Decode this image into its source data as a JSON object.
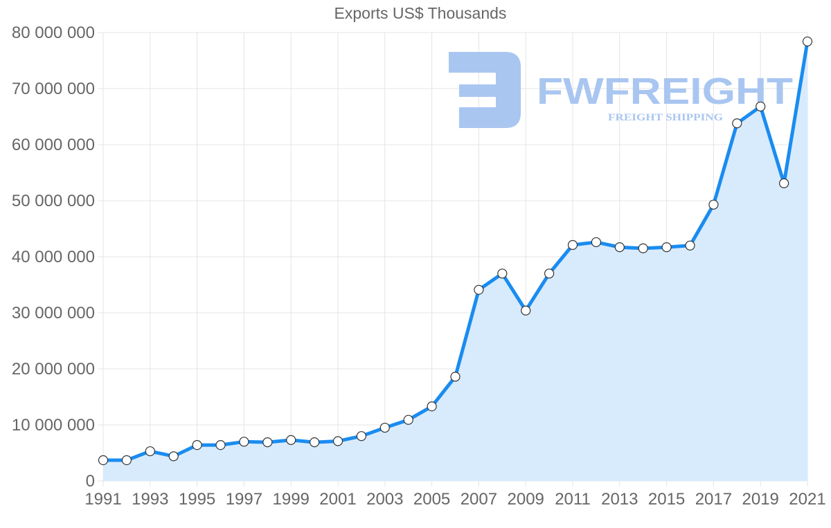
{
  "chart_data": {
    "type": "line",
    "title": "Exports US$ Thousands",
    "xlabel": "",
    "ylabel": "",
    "x": [
      1991,
      1992,
      1993,
      1994,
      1995,
      1996,
      1997,
      1998,
      1999,
      2000,
      2001,
      2002,
      2003,
      2004,
      2005,
      2006,
      2007,
      2008,
      2009,
      2010,
      2011,
      2012,
      2013,
      2014,
      2015,
      2016,
      2017,
      2018,
      2019,
      2020,
      2021
    ],
    "series": [
      {
        "name": "Exports US$ Thousands",
        "values": [
          3700000,
          3700000,
          5300000,
          4400000,
          6400000,
          6400000,
          7000000,
          6900000,
          7300000,
          6900000,
          7100000,
          8000000,
          9500000,
          10900000,
          13300000,
          18600000,
          34100000,
          37000000,
          30400000,
          37000000,
          42100000,
          42600000,
          41700000,
          41500000,
          41700000,
          42000000,
          49300000,
          63800000,
          66800000,
          53100000,
          78400000
        ]
      }
    ],
    "ylim": [
      0,
      80000000
    ],
    "y_ticks": [
      "0",
      "10 000 000",
      "20 000 000",
      "30 000 000",
      "40 000 000",
      "50 000 000",
      "60 000 000",
      "70 000 000",
      "80 000 000"
    ],
    "x_tick_labels": [
      "1991",
      "1993",
      "1995",
      "1997",
      "1999",
      "2001",
      "2003",
      "2005",
      "2007",
      "2009",
      "2011",
      "2013",
      "2015",
      "2017",
      "2019",
      "2021"
    ],
    "grid": true,
    "legend": "none",
    "fill": "area-under-line",
    "colors": {
      "line": "#1a8cf0",
      "fill": "#d8ebfd",
      "marker_fill": "#ffffff",
      "marker_stroke": "#333333"
    }
  },
  "watermark": {
    "brand": "FWFREIGHT",
    "tagline": "FREIGHT SHIPPING",
    "color": "#a9c6f1"
  }
}
